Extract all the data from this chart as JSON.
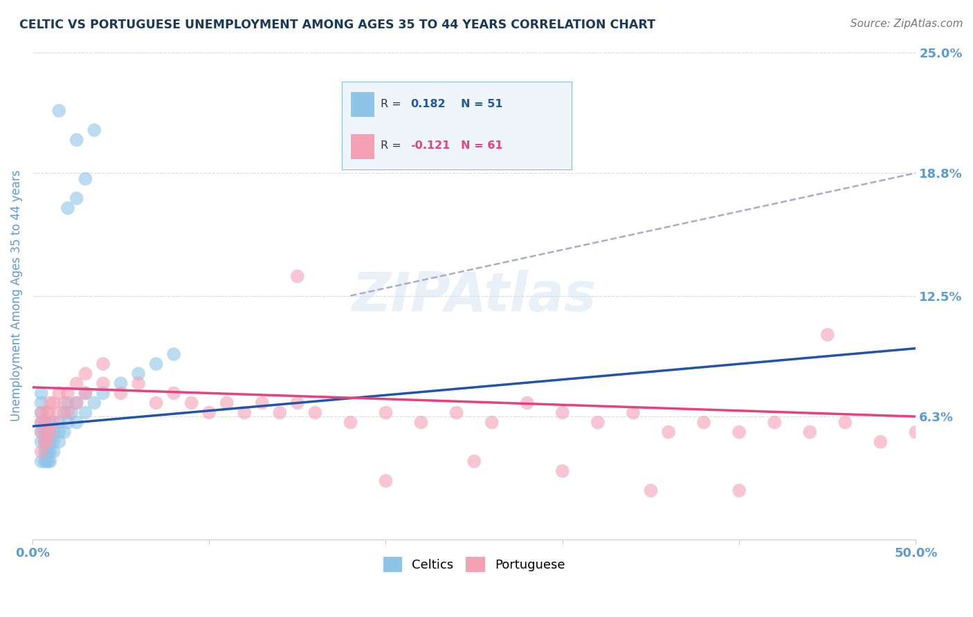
{
  "title": "CELTIC VS PORTUGUESE UNEMPLOYMENT AMONG AGES 35 TO 44 YEARS CORRELATION CHART",
  "source": "Source: ZipAtlas.com",
  "ylabel": "Unemployment Among Ages 35 to 44 years",
  "xlim": [
    0,
    0.5
  ],
  "ylim": [
    0,
    0.25
  ],
  "yticks": [
    0.0,
    0.063,
    0.125,
    0.188,
    0.25
  ],
  "ytick_labels": [
    "",
    "6.3%",
    "12.5%",
    "18.8%",
    "25.0%"
  ],
  "xticks": [
    0.0,
    0.1,
    0.2,
    0.3,
    0.4,
    0.5
  ],
  "xtick_labels": [
    "0.0%",
    "",
    "",
    "",
    "",
    "50.0%"
  ],
  "celtics_R": 0.182,
  "celtics_N": 51,
  "portuguese_R": -0.121,
  "portuguese_N": 61,
  "celtics_color": "#8ec4e8",
  "portuguese_color": "#f4a0b5",
  "celtics_line_color": "#2255aa",
  "portuguese_line_color": "#e84080",
  "dashed_line_color": "#aaaacc",
  "background_color": "#ffffff",
  "title_color": "#1a3a5c",
  "axis_label_color": "#5b9bd5",
  "tick_label_color": "#5b9bd5",
  "celtics_x": [
    0.005,
    0.005,
    0.005,
    0.005,
    0.005,
    0.005,
    0.005,
    0.007,
    0.007,
    0.007,
    0.007,
    0.007,
    0.008,
    0.008,
    0.008,
    0.008,
    0.009,
    0.009,
    0.009,
    0.01,
    0.01,
    0.01,
    0.01,
    0.01,
    0.012,
    0.012,
    0.012,
    0.015,
    0.015,
    0.015,
    0.018,
    0.018,
    0.02,
    0.02,
    0.022,
    0.025,
    0.025,
    0.03,
    0.03,
    0.035,
    0.04,
    0.05,
    0.06,
    0.07,
    0.08,
    0.02,
    0.025,
    0.03,
    0.025,
    0.035,
    0.015
  ],
  "celtics_y": [
    0.04,
    0.05,
    0.055,
    0.06,
    0.065,
    0.07,
    0.075,
    0.04,
    0.045,
    0.05,
    0.055,
    0.06,
    0.04,
    0.045,
    0.05,
    0.055,
    0.04,
    0.045,
    0.055,
    0.04,
    0.045,
    0.05,
    0.055,
    0.06,
    0.045,
    0.05,
    0.055,
    0.05,
    0.055,
    0.06,
    0.055,
    0.065,
    0.06,
    0.07,
    0.065,
    0.06,
    0.07,
    0.065,
    0.075,
    0.07,
    0.075,
    0.08,
    0.085,
    0.09,
    0.095,
    0.17,
    0.175,
    0.185,
    0.205,
    0.21,
    0.22
  ],
  "portuguese_x": [
    0.005,
    0.005,
    0.005,
    0.005,
    0.007,
    0.007,
    0.008,
    0.008,
    0.009,
    0.009,
    0.01,
    0.01,
    0.012,
    0.012,
    0.015,
    0.015,
    0.018,
    0.02,
    0.02,
    0.025,
    0.025,
    0.03,
    0.03,
    0.04,
    0.04,
    0.05,
    0.06,
    0.07,
    0.08,
    0.09,
    0.1,
    0.11,
    0.12,
    0.13,
    0.14,
    0.15,
    0.16,
    0.18,
    0.2,
    0.22,
    0.24,
    0.26,
    0.28,
    0.3,
    0.32,
    0.34,
    0.36,
    0.38,
    0.4,
    0.42,
    0.44,
    0.46,
    0.48,
    0.5,
    0.25,
    0.3,
    0.2,
    0.35,
    0.4,
    0.15,
    0.45
  ],
  "portuguese_y": [
    0.045,
    0.055,
    0.06,
    0.065,
    0.05,
    0.06,
    0.05,
    0.065,
    0.055,
    0.065,
    0.055,
    0.07,
    0.06,
    0.07,
    0.065,
    0.075,
    0.07,
    0.065,
    0.075,
    0.07,
    0.08,
    0.075,
    0.085,
    0.08,
    0.09,
    0.075,
    0.08,
    0.07,
    0.075,
    0.07,
    0.065,
    0.07,
    0.065,
    0.07,
    0.065,
    0.07,
    0.065,
    0.06,
    0.065,
    0.06,
    0.065,
    0.06,
    0.07,
    0.065,
    0.06,
    0.065,
    0.055,
    0.06,
    0.055,
    0.06,
    0.055,
    0.06,
    0.05,
    0.055,
    0.04,
    0.035,
    0.03,
    0.025,
    0.025,
    0.135,
    0.105
  ],
  "celtics_trend_x": [
    0.0,
    0.5
  ],
  "celtics_trend_y": [
    0.058,
    0.098
  ],
  "portuguese_trend_x": [
    0.0,
    0.5
  ],
  "portuguese_trend_y": [
    0.078,
    0.063
  ],
  "dashed_trend_x": [
    0.18,
    0.5
  ],
  "dashed_trend_y": [
    0.125,
    0.188
  ]
}
